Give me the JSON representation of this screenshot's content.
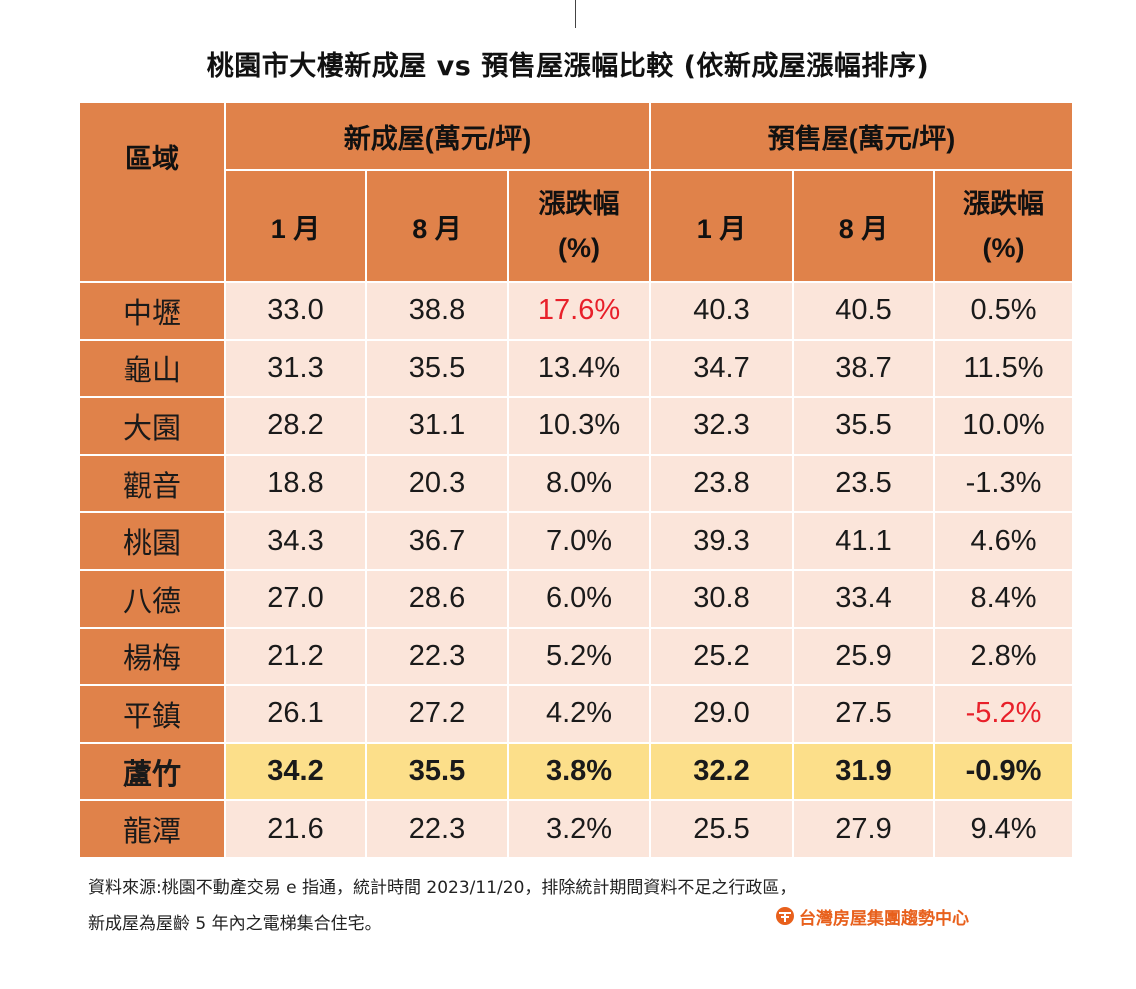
{
  "title": "桃園市大樓新成屋 vs 預售屋漲幅比較 (依新成屋漲幅排序)",
  "header": {
    "district": "區域",
    "group_new": "新成屋(萬元/坪)",
    "group_presale": "預售屋(萬元/坪)",
    "jan": "1 月",
    "aug": "8 月",
    "change_line1": "漲跌幅",
    "change_line2": "(%)"
  },
  "rows": [
    {
      "district": "中壢",
      "new_jan": "33.0",
      "new_aug": "38.8",
      "new_chg": "17.6%",
      "pre_jan": "40.3",
      "pre_aug": "40.5",
      "pre_chg": "0.5%"
    },
    {
      "district": "龜山",
      "new_jan": "31.3",
      "new_aug": "35.5",
      "new_chg": "13.4%",
      "pre_jan": "34.7",
      "pre_aug": "38.7",
      "pre_chg": "11.5%"
    },
    {
      "district": "大園",
      "new_jan": "28.2",
      "new_aug": "31.1",
      "new_chg": "10.3%",
      "pre_jan": "32.3",
      "pre_aug": "35.5",
      "pre_chg": "10.0%"
    },
    {
      "district": "觀音",
      "new_jan": "18.8",
      "new_aug": "20.3",
      "new_chg": "8.0%",
      "pre_jan": "23.8",
      "pre_aug": "23.5",
      "pre_chg": "-1.3%"
    },
    {
      "district": "桃園",
      "new_jan": "34.3",
      "new_aug": "36.7",
      "new_chg": "7.0%",
      "pre_jan": "39.3",
      "pre_aug": "41.1",
      "pre_chg": "4.6%"
    },
    {
      "district": "八德",
      "new_jan": "27.0",
      "new_aug": "28.6",
      "new_chg": "6.0%",
      "pre_jan": "30.8",
      "pre_aug": "33.4",
      "pre_chg": "8.4%"
    },
    {
      "district": "楊梅",
      "new_jan": "21.2",
      "new_aug": "22.3",
      "new_chg": "5.2%",
      "pre_jan": "25.2",
      "pre_aug": "25.9",
      "pre_chg": "2.8%"
    },
    {
      "district": "平鎮",
      "new_jan": "26.1",
      "new_aug": "27.2",
      "new_chg": "4.2%",
      "pre_jan": "29.0",
      "pre_aug": "27.5",
      "pre_chg": "-5.2%"
    },
    {
      "district": "蘆竹",
      "new_jan": "34.2",
      "new_aug": "35.5",
      "new_chg": "3.8%",
      "pre_jan": "32.2",
      "pre_aug": "31.9",
      "pre_chg": "-0.9%"
    },
    {
      "district": "龍潭",
      "new_jan": "21.6",
      "new_aug": "22.3",
      "new_chg": "3.2%",
      "pre_jan": "25.5",
      "pre_aug": "27.9",
      "pre_chg": "9.4%"
    }
  ],
  "footnote": {
    "line1": "資料來源:桃園不動產交易 e 指通，統計時間 2023/11/20，排除統計期間資料不足之行政區，",
    "line2": "新成屋為屋齡 5 年內之電梯集合住宅。"
  },
  "brand": {
    "text": "台灣房屋集團趨勢中心",
    "icon": "taiwan-realty-logo-icon",
    "color": "#e8601c"
  },
  "colors": {
    "header_bg": "#e0824a",
    "cell_bg": "#fbe5da",
    "highlight_bg": "#fcdf8a",
    "negative_red": "#e8202a"
  },
  "chart_data": {
    "type": "table",
    "title": "桃園市大樓新成屋 vs 預售屋漲幅比較 (依新成屋漲幅排序)",
    "columns": [
      "區域",
      "新成屋 1 月",
      "新成屋 8 月",
      "新成屋 漲跌幅(%)",
      "預售屋 1 月",
      "預售屋 8 月",
      "預售屋 漲跌幅(%)"
    ],
    "units": "萬元/坪",
    "highlighted_row": "蘆竹",
    "red_cells": [
      {
        "district": "中壢",
        "column": "new_chg"
      },
      {
        "district": "平鎮",
        "column": "pre_chg"
      }
    ],
    "rows": [
      [
        "中壢",
        33.0,
        38.8,
        17.6,
        40.3,
        40.5,
        0.5
      ],
      [
        "龜山",
        31.3,
        35.5,
        13.4,
        34.7,
        38.7,
        11.5
      ],
      [
        "大園",
        28.2,
        31.1,
        10.3,
        32.3,
        35.5,
        10.0
      ],
      [
        "觀音",
        18.8,
        20.3,
        8.0,
        23.8,
        23.5,
        -1.3
      ],
      [
        "桃園",
        34.3,
        36.7,
        7.0,
        39.3,
        41.1,
        4.6
      ],
      [
        "八德",
        27.0,
        28.6,
        6.0,
        30.8,
        33.4,
        8.4
      ],
      [
        "楊梅",
        21.2,
        22.3,
        5.2,
        25.2,
        25.9,
        2.8
      ],
      [
        "平鎮",
        26.1,
        27.2,
        4.2,
        29.0,
        27.5,
        -5.2
      ],
      [
        "蘆竹",
        34.2,
        35.5,
        3.8,
        32.2,
        31.9,
        -0.9
      ],
      [
        "龍潭",
        21.6,
        22.3,
        3.2,
        25.5,
        27.9,
        9.4
      ]
    ]
  }
}
